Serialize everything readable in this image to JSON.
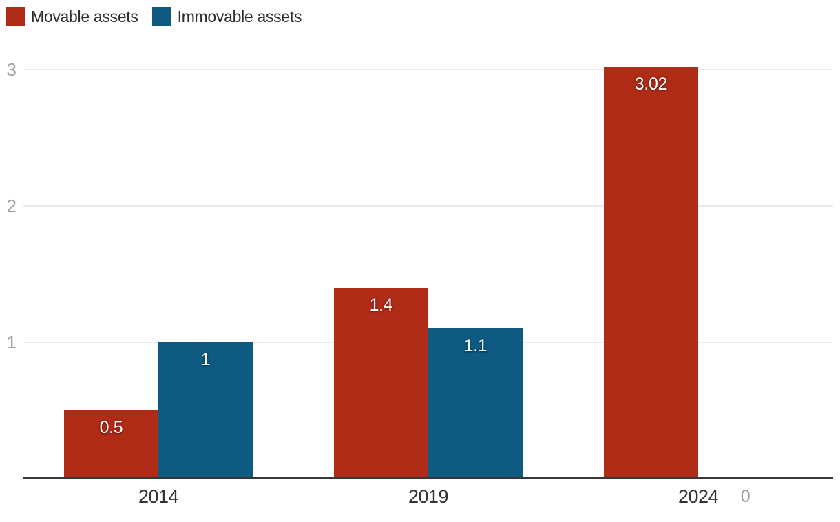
{
  "legend": {
    "items": [
      {
        "label": "Movable assets",
        "color": "#b02c17"
      },
      {
        "label": "Immovable assets",
        "color": "#0e5a80"
      }
    ]
  },
  "chart_data": {
    "type": "bar",
    "categories": [
      "2014",
      "2019",
      "2024"
    ],
    "series": [
      {
        "name": "Movable assets",
        "color": "#b02c17",
        "values": [
          0.5,
          1.4,
          3.02
        ],
        "labels": [
          "0.5",
          "1.4",
          "3.02"
        ]
      },
      {
        "name": "Immovable assets",
        "color": "#0e5a80",
        "values": [
          1,
          1.1,
          0
        ],
        "labels": [
          "1",
          "1.1",
          "0"
        ]
      }
    ],
    "title": "",
    "xlabel": "",
    "ylabel": "",
    "ylim": [
      0,
      3.2
    ],
    "yticks": [
      1,
      2,
      3
    ],
    "grid": "horizontal",
    "legend_position": "top-left",
    "colors": {
      "grid_line": "#ebebeb",
      "axis_line": "#383838",
      "y_tick_text": "#a3a3a3",
      "x_tick_text": "#333333",
      "bar_label_text": "#ffffff",
      "zero_label_text": "#9e9e9e",
      "background": "#ffffff"
    }
  }
}
